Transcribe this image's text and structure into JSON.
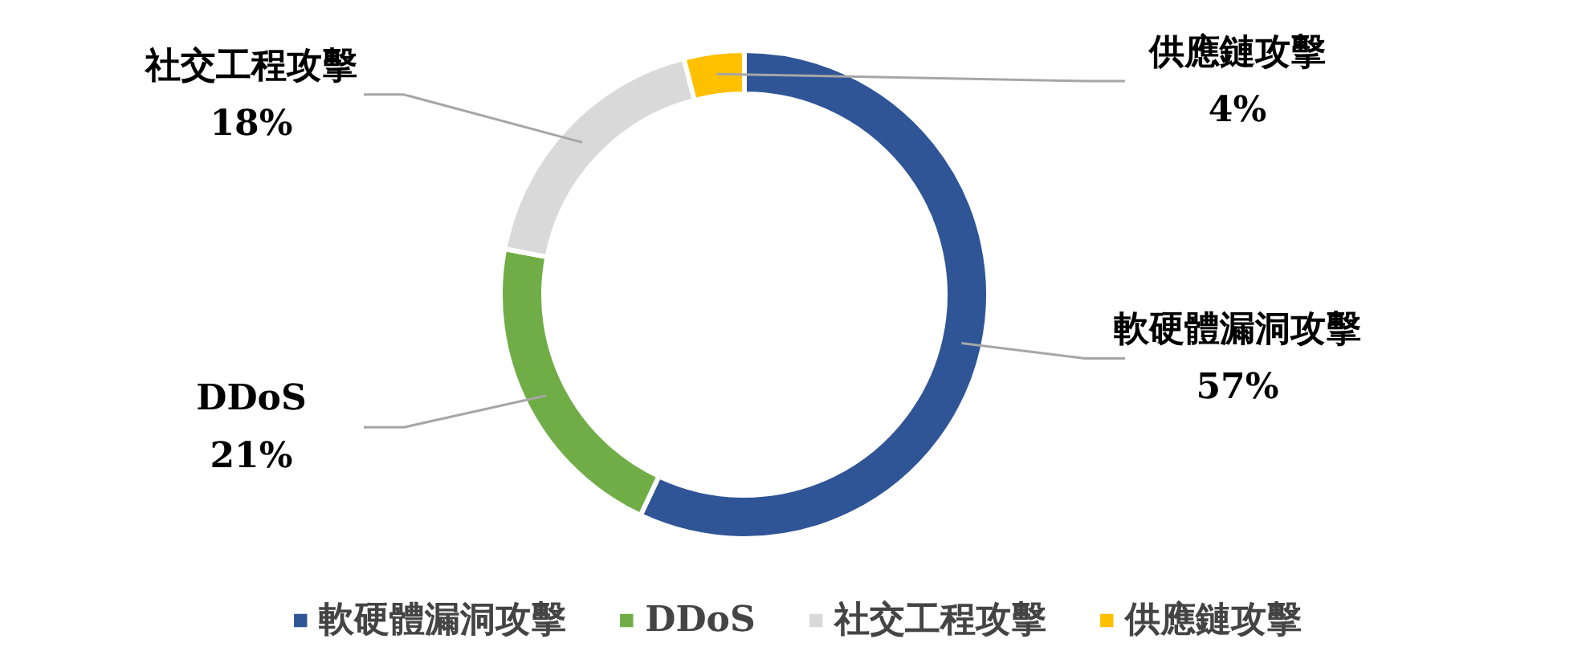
{
  "chart_data": {
    "type": "donut",
    "categories": [
      "軟硬體漏洞攻擊",
      "DDoS",
      "社交工程攻擊",
      "供應鏈攻擊"
    ],
    "values": [
      57,
      21,
      18,
      4
    ],
    "value_labels": [
      "57%",
      "21%",
      "18%",
      "4%"
    ],
    "colors": [
      "#2f5597",
      "#70ad47",
      "#d9d9d9",
      "#ffc000"
    ],
    "legend": "bottom"
  }
}
